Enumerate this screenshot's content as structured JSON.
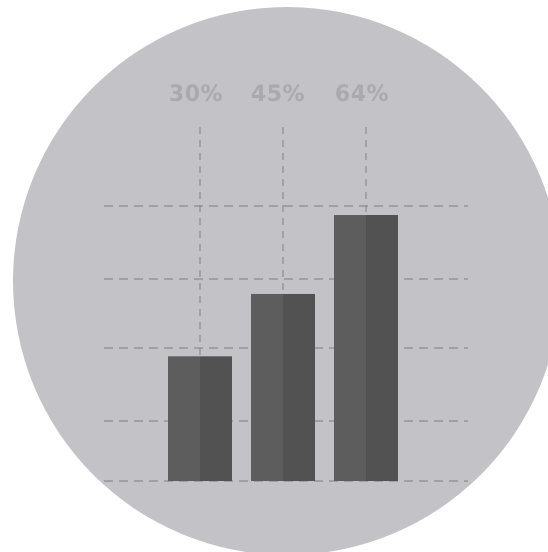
{
  "chart_data": {
    "type": "bar",
    "categories": [
      "",
      "",
      ""
    ],
    "values": [
      30,
      45,
      64
    ],
    "value_labels": [
      "30%",
      "45%",
      "64%"
    ],
    "title": "",
    "xlabel": "",
    "ylabel": "",
    "ylim": [
      0,
      64
    ],
    "grid": true,
    "legend": "none"
  },
  "colors": {
    "background_circle": "#c2c2c7",
    "bar_light": "#5d5d5d",
    "bar_dark": "#525252",
    "grid": "#8c8c90",
    "label": "#a9a9ae"
  }
}
